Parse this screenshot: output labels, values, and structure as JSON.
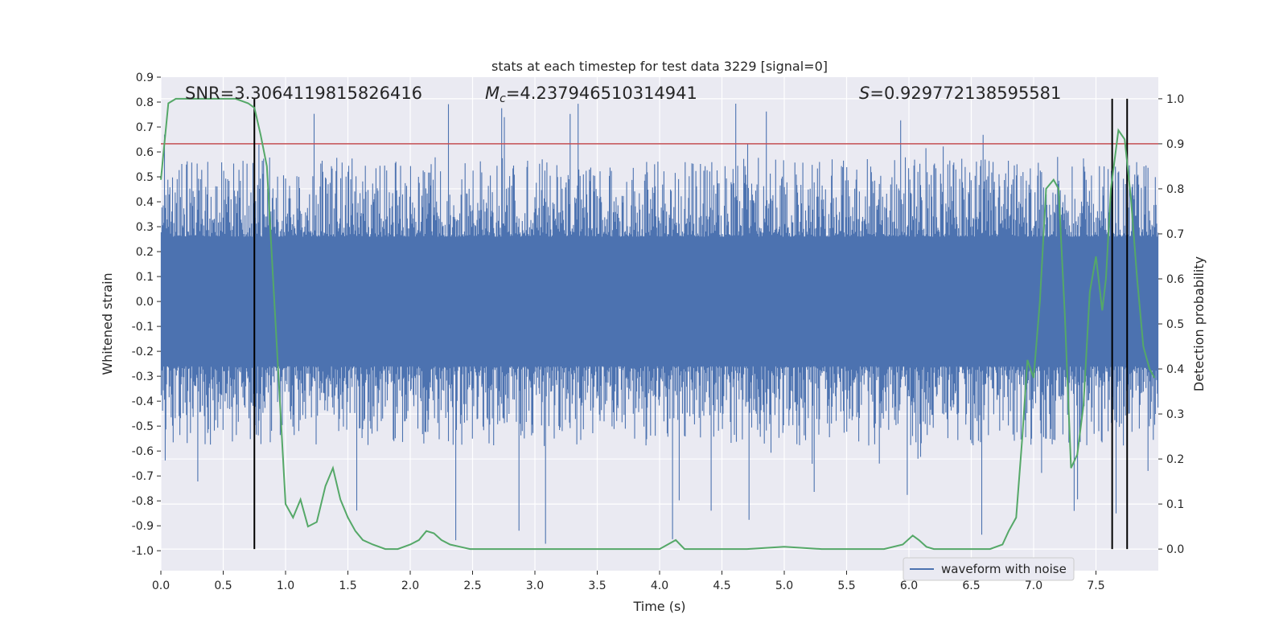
{
  "chart_data": {
    "type": "line",
    "title": "stats at each timestep for test data 3229 [signal=0]",
    "xlabel": "Time (s)",
    "ylabel": "Whitened strain",
    "y2label": "Detection probability",
    "xlim": [
      0.0,
      8.0
    ],
    "ylim": [
      -1.08,
      0.9
    ],
    "y2lim": [
      -0.048,
      1.048
    ],
    "x_ticks": [
      "0.0",
      "0.5",
      "1.0",
      "1.5",
      "2.0",
      "2.5",
      "3.0",
      "3.5",
      "4.0",
      "4.5",
      "5.0",
      "5.5",
      "6.0",
      "6.5",
      "7.0",
      "7.5"
    ],
    "y_ticks": [
      "0.9",
      "0.8",
      "0.7",
      "0.6",
      "0.5",
      "0.4",
      "0.3",
      "0.2",
      "0.1",
      "0.0",
      "-0.1",
      "-0.2",
      "-0.3",
      "-0.4",
      "-0.5",
      "-0.6",
      "-0.7",
      "-0.8",
      "-0.9",
      "-1.0"
    ],
    "y2_ticks": [
      "1.0",
      "0.9",
      "0.8",
      "0.7",
      "0.6",
      "0.5",
      "0.4",
      "0.3",
      "0.2",
      "0.1",
      "0.0"
    ],
    "grid": true,
    "legend_position": "lower right",
    "annotations": {
      "snr": "SNR=3.3064119815826416",
      "mc_symbol": "M",
      "mc_sub": "c",
      "mc_value": "=4.237946510314941",
      "s_symbol": "S",
      "s_value": "=0.929772138595581"
    },
    "series": [
      {
        "name": "waveform with noise",
        "axis": "left",
        "color": "#4c72b0",
        "description_range": [
          -1.0,
          0.8
        ]
      },
      {
        "axis": "right",
        "color": "#55a868",
        "x": [
          0.0,
          0.06,
          0.12,
          0.2,
          0.3,
          0.4,
          0.5,
          0.6,
          0.7,
          0.75,
          0.8,
          0.85,
          0.9,
          0.95,
          1.0,
          1.06,
          1.12,
          1.18,
          1.25,
          1.32,
          1.38,
          1.44,
          1.5,
          1.56,
          1.62,
          1.7,
          1.8,
          1.9,
          2.0,
          2.07,
          2.13,
          2.19,
          2.25,
          2.32,
          2.4,
          2.48,
          2.6,
          2.8,
          3.0,
          3.2,
          3.4,
          3.6,
          3.8,
          4.0,
          4.13,
          4.2,
          4.3,
          4.5,
          4.7,
          5.0,
          5.3,
          5.6,
          5.8,
          5.95,
          6.03,
          6.08,
          6.14,
          6.2,
          6.3,
          6.5,
          6.65,
          6.75,
          6.8,
          6.86,
          6.91,
          6.95,
          7.0,
          7.05,
          7.1,
          7.16,
          7.2,
          7.25,
          7.3,
          7.35,
          7.4,
          7.45,
          7.5,
          7.55,
          7.58,
          7.62,
          7.68,
          7.73,
          7.78,
          7.83,
          7.88,
          7.93,
          7.97
        ],
        "values": [
          0.82,
          0.99,
          1.0,
          1.0,
          1.0,
          1.0,
          1.0,
          1.0,
          0.99,
          0.98,
          0.92,
          0.85,
          0.6,
          0.35,
          0.1,
          0.07,
          0.11,
          0.05,
          0.06,
          0.14,
          0.18,
          0.11,
          0.07,
          0.04,
          0.02,
          0.01,
          0.0,
          0.0,
          0.01,
          0.02,
          0.04,
          0.035,
          0.02,
          0.01,
          0.005,
          0.0,
          0.0,
          0.0,
          0.0,
          0.0,
          0.0,
          0.0,
          0.0,
          0.0,
          0.02,
          0.0,
          0.0,
          0.0,
          0.0,
          0.005,
          0.0,
          0.0,
          0.0,
          0.01,
          0.03,
          0.02,
          0.005,
          0.0,
          0.0,
          0.0,
          0.0,
          0.01,
          0.04,
          0.07,
          0.25,
          0.42,
          0.38,
          0.55,
          0.8,
          0.82,
          0.8,
          0.52,
          0.18,
          0.21,
          0.32,
          0.57,
          0.65,
          0.53,
          0.6,
          0.8,
          0.93,
          0.91,
          0.78,
          0.6,
          0.45,
          0.4,
          0.38
        ]
      }
    ],
    "reference_lines": [
      {
        "orientation": "horizontal",
        "axis": "right",
        "value": 0.9,
        "color": "#c44e52"
      },
      {
        "orientation": "vertical",
        "value": 0.75,
        "color": "#000000"
      },
      {
        "orientation": "vertical",
        "value": 7.63,
        "color": "#000000"
      },
      {
        "orientation": "vertical",
        "value": 7.75,
        "color": "#000000"
      }
    ],
    "colors": {
      "background": "#eaeaf2",
      "grid": "#ffffff",
      "waveform": "#4c72b0",
      "probability": "#55a868",
      "threshold": "#c44e52",
      "marker": "#000000"
    }
  }
}
